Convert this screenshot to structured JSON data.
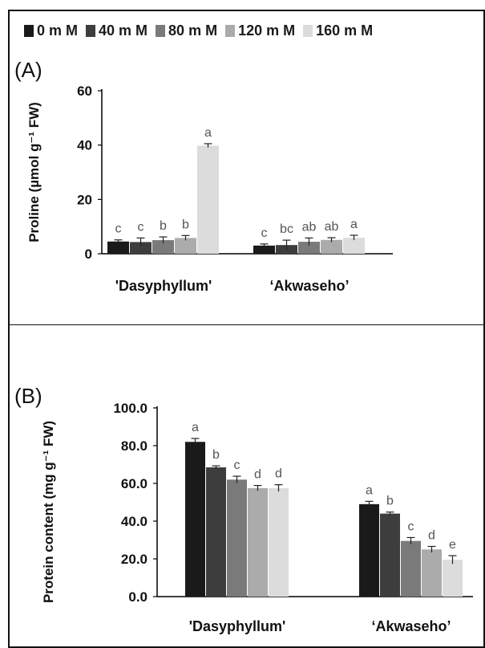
{
  "legend": {
    "items": [
      {
        "label": "0 m M",
        "color": "#1a1a1a"
      },
      {
        "label": "40 m M",
        "color": "#3d3d3d"
      },
      {
        "label": "80 m M",
        "color": "#7a7a7a"
      },
      {
        "label": "120 m M",
        "color": "#ababab"
      },
      {
        "label": "160 m M",
        "color": "#dcdcdc"
      }
    ]
  },
  "chart_data": [
    {
      "panel": "(A)",
      "type": "bar",
      "ylabel": "Proline (µmol g⁻¹ FW)",
      "ylim": [
        0,
        60
      ],
      "yticks": [
        "0",
        "20",
        "40",
        "60"
      ],
      "categories": [
        "'Dasyphyllum'",
        "‘Akwaseho’"
      ],
      "series": [
        {
          "name": "0 m M",
          "values": [
            4.5,
            3.0
          ],
          "errors": [
            0.6,
            0.6
          ],
          "letters": [
            "c",
            "c"
          ]
        },
        {
          "name": "40 m M",
          "values": [
            4.3,
            3.2
          ],
          "errors": [
            1.5,
            1.8
          ],
          "letters": [
            "c",
            "bc"
          ]
        },
        {
          "name": "80 m M",
          "values": [
            5.0,
            4.4
          ],
          "errors": [
            1.2,
            1.4
          ],
          "letters": [
            "b",
            "ab"
          ]
        },
        {
          "name": "120 m M",
          "values": [
            5.8,
            5.1
          ],
          "errors": [
            0.9,
            0.8
          ],
          "letters": [
            "b",
            "ab"
          ]
        },
        {
          "name": "160 m M",
          "values": [
            39.8,
            5.9
          ],
          "errors": [
            0.7,
            0.9
          ],
          "letters": [
            "a",
            "a"
          ]
        }
      ]
    },
    {
      "panel": "(B)",
      "type": "bar",
      "ylabel": "Protein content (mg g⁻¹ FW)",
      "ylim": [
        0,
        100
      ],
      "yticks": [
        "0.0",
        "20.0",
        "40.0",
        "60.0",
        "80.0",
        "100.0"
      ],
      "categories": [
        "'Dasyphyllum'",
        "‘Akwaseho’"
      ],
      "series": [
        {
          "name": "0 m M",
          "values": [
            82.0,
            49.0
          ],
          "errors": [
            1.8,
            1.5
          ],
          "letters": [
            "a",
            "a"
          ]
        },
        {
          "name": "40 m M",
          "values": [
            68.5,
            44.0
          ],
          "errors": [
            0.8,
            0.8
          ],
          "letters": [
            "b",
            "b"
          ]
        },
        {
          "name": "80 m M",
          "values": [
            62.0,
            29.5
          ],
          "errors": [
            1.8,
            1.8
          ],
          "letters": [
            "c",
            "c"
          ]
        },
        {
          "name": "120 m M",
          "values": [
            57.5,
            25.0
          ],
          "errors": [
            1.4,
            1.6
          ],
          "letters": [
            "d",
            "d"
          ]
        },
        {
          "name": "160 m M",
          "values": [
            57.5,
            19.5
          ],
          "errors": [
            1.8,
            2.2
          ],
          "letters": [
            "d",
            "e"
          ]
        }
      ]
    }
  ]
}
